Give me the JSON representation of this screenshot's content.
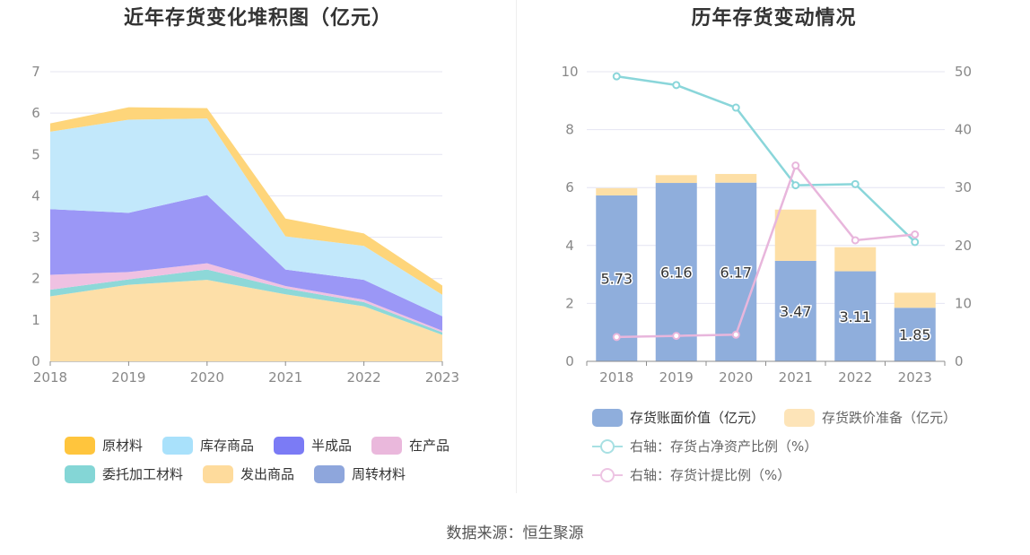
{
  "left_chart": {
    "title": "近年存货变化堆积图（亿元）",
    "chart_data": {
      "type": "area",
      "stacked": true,
      "categories": [
        "2018",
        "2019",
        "2020",
        "2021",
        "2022",
        "2023"
      ],
      "y_ticks": [
        "0",
        "1",
        "2",
        "3",
        "4",
        "5",
        "6",
        "7"
      ],
      "ylim": [
        0,
        7
      ],
      "grid": true,
      "legend_position": "bottom",
      "series": [
        {
          "name": "发出商品",
          "color": "#FDDFA8",
          "values": [
            1.57,
            1.85,
            1.97,
            1.62,
            1.33,
            0.64
          ]
        },
        {
          "name": "委托加工材料",
          "color": "#8DD8D8",
          "values": [
            0.16,
            0.13,
            0.25,
            0.14,
            0.1,
            0.06
          ]
        },
        {
          "name": "在产品",
          "color": "#EFC1E2",
          "values": [
            0.36,
            0.18,
            0.15,
            0.06,
            0.06,
            0.04
          ]
        },
        {
          "name": "周转材料",
          "color": "#8EA6DC",
          "values": [
            0,
            0,
            0,
            0,
            0,
            0
          ]
        },
        {
          "name": "半成品",
          "color": "#9B97F6",
          "values": [
            1.59,
            1.43,
            1.65,
            0.4,
            0.48,
            0.35
          ]
        },
        {
          "name": "库存商品",
          "color": "#C2E8FB",
          "values": [
            1.87,
            2.25,
            1.85,
            0.8,
            0.82,
            0.52
          ]
        },
        {
          "name": "原材料",
          "color": "#FED57A",
          "values": [
            0.2,
            0.3,
            0.25,
            0.43,
            0.3,
            0.22
          ]
        }
      ]
    },
    "legend": [
      {
        "label": "原材料",
        "color": "#FFC53D"
      },
      {
        "label": "库存商品",
        "color": "#A9E1FB"
      },
      {
        "label": "半成品",
        "color": "#7B7BF5"
      },
      {
        "label": "在产品",
        "color": "#EAB8DC"
      },
      {
        "label": "委托加工材料",
        "color": "#84D6D6"
      },
      {
        "label": "发出商品",
        "color": "#FEDB9C"
      },
      {
        "label": "周转材料",
        "color": "#8EA6DC"
      }
    ]
  },
  "right_chart": {
    "title": "历年存货变动情况",
    "chart_data": {
      "type": "bar",
      "stacked": true,
      "categories": [
        "2018",
        "2019",
        "2020",
        "2021",
        "2022",
        "2023"
      ],
      "y_ticks_left": [
        "0",
        "2",
        "4",
        "6",
        "8",
        "10"
      ],
      "ylim_left": [
        0,
        10
      ],
      "y_ticks_right": [
        "0",
        "10",
        "20",
        "30",
        "40",
        "50"
      ],
      "ylim_right": [
        0,
        50
      ],
      "grid": true,
      "legend_position": "bottom",
      "series": [
        {
          "name": "存货账面价值（亿元）",
          "axis": "left",
          "kind": "bar",
          "color": "#8FAEDC",
          "values": [
            5.73,
            6.16,
            6.17,
            3.47,
            3.11,
            1.85
          ],
          "labels": [
            "5.73",
            "6.16",
            "6.17",
            "3.47",
            "3.11",
            "1.85"
          ]
        },
        {
          "name": "存货跌价准备（亿元）",
          "axis": "left",
          "kind": "bar",
          "color": "#FDDFA6",
          "values": [
            0.25,
            0.27,
            0.3,
            1.77,
            0.83,
            0.52
          ]
        },
        {
          "name": "右轴：存货占净资产比例（%）",
          "axis": "right",
          "kind": "line",
          "color": "#8AD6DA",
          "values": [
            49.2,
            47.7,
            43.8,
            30.4,
            30.6,
            20.6
          ]
        },
        {
          "name": "右轴：存货计提比例（%）",
          "axis": "right",
          "kind": "line",
          "color": "#E8B6DC",
          "values": [
            4.2,
            4.4,
            4.6,
            33.8,
            20.9,
            21.9
          ]
        }
      ]
    },
    "legend": {
      "bar1": "存货账面价值（亿元）",
      "bar2": "存货跌价准备（亿元）",
      "line1": "右轴：存货占净资产比例（%）",
      "line2": "右轴：存货计提比例（%）",
      "bar1_color": "#8FAEDC",
      "bar2_color": "#FDE4B8",
      "line1_color": "#A8E0E3",
      "line2_color": "#EDC4E3"
    }
  },
  "source_text": "数据来源：恒生聚源"
}
